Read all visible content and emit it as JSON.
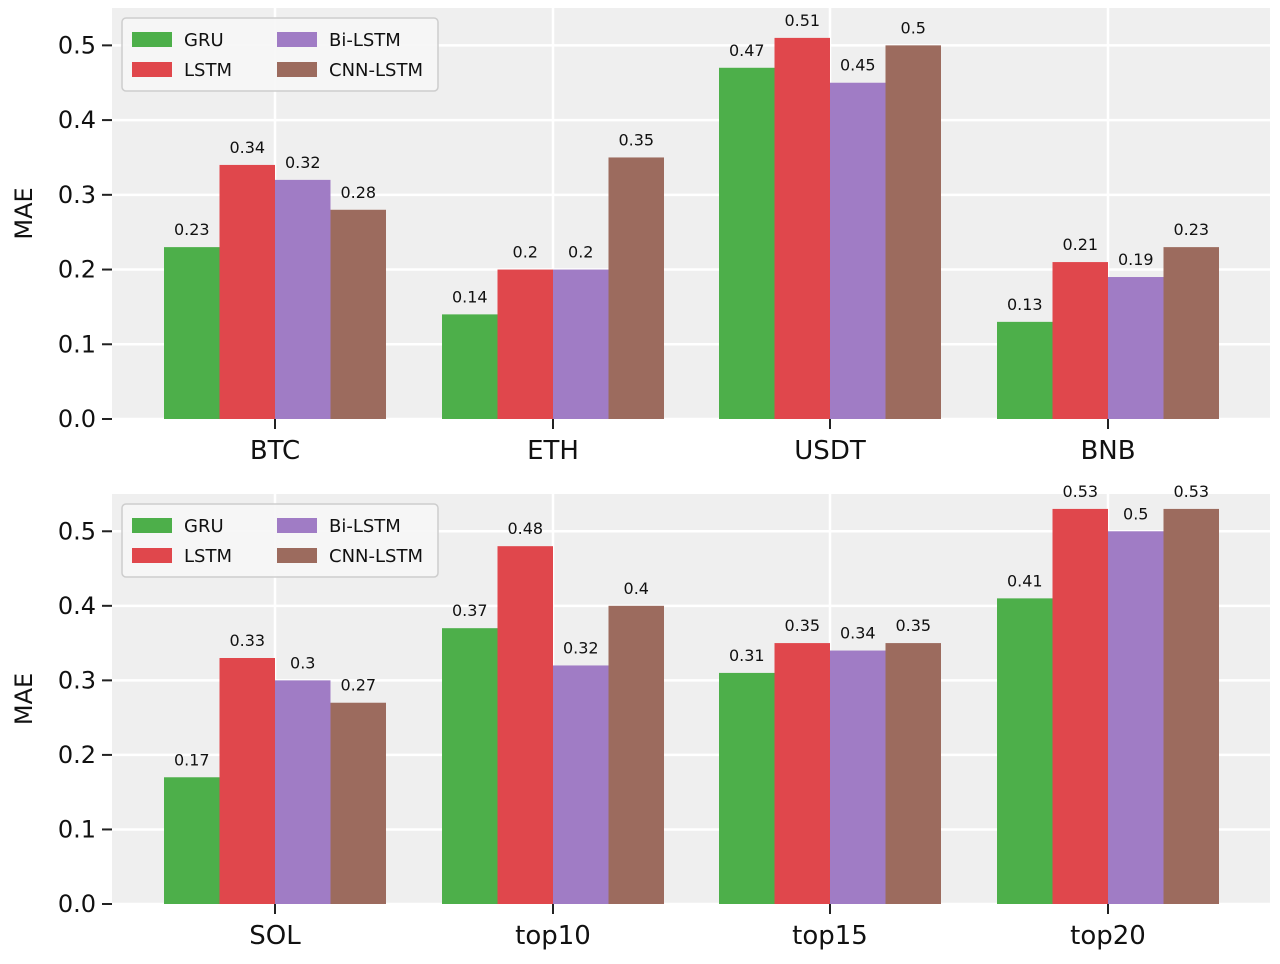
{
  "colors": {
    "GRU": "#4daf4a",
    "LSTM": "#e0474c",
    "Bi-LSTM": "#a07cc5",
    "CNN-LSTM": "#9c6b5e",
    "plot_bg": "#efefef",
    "grid": "#ffffff"
  },
  "chart_data": [
    {
      "type": "bar",
      "categories": [
        "BTC",
        "ETH",
        "USDT",
        "BNB"
      ],
      "series": [
        {
          "name": "GRU",
          "values": [
            0.23,
            0.14,
            0.47,
            0.13
          ]
        },
        {
          "name": "LSTM",
          "values": [
            0.34,
            0.2,
            0.51,
            0.21
          ]
        },
        {
          "name": "Bi-LSTM",
          "values": [
            0.32,
            0.2,
            0.45,
            0.19
          ]
        },
        {
          "name": "CNN-LSTM",
          "values": [
            0.28,
            0.35,
            0.5,
            0.23
          ]
        }
      ],
      "ylabel": "MAE",
      "ylim": [
        0,
        0.55
      ],
      "yticks": [
        "0.0",
        "0.1",
        "0.2",
        "0.3",
        "0.4",
        "0.5"
      ],
      "grid": true,
      "legend": "top-left"
    },
    {
      "type": "bar",
      "categories": [
        "SOL",
        "top10",
        "top15",
        "top20"
      ],
      "series": [
        {
          "name": "GRU",
          "values": [
            0.17,
            0.37,
            0.31,
            0.41
          ]
        },
        {
          "name": "LSTM",
          "values": [
            0.33,
            0.48,
            0.35,
            0.53
          ]
        },
        {
          "name": "Bi-LSTM",
          "values": [
            0.3,
            0.32,
            0.34,
            0.5
          ]
        },
        {
          "name": "CNN-LSTM",
          "values": [
            0.27,
            0.4,
            0.35,
            0.53
          ]
        }
      ],
      "ylabel": "MAE",
      "ylim": [
        0,
        0.55
      ],
      "yticks": [
        "0.0",
        "0.1",
        "0.2",
        "0.3",
        "0.4",
        "0.5"
      ],
      "grid": true,
      "legend": "top-left"
    }
  ]
}
